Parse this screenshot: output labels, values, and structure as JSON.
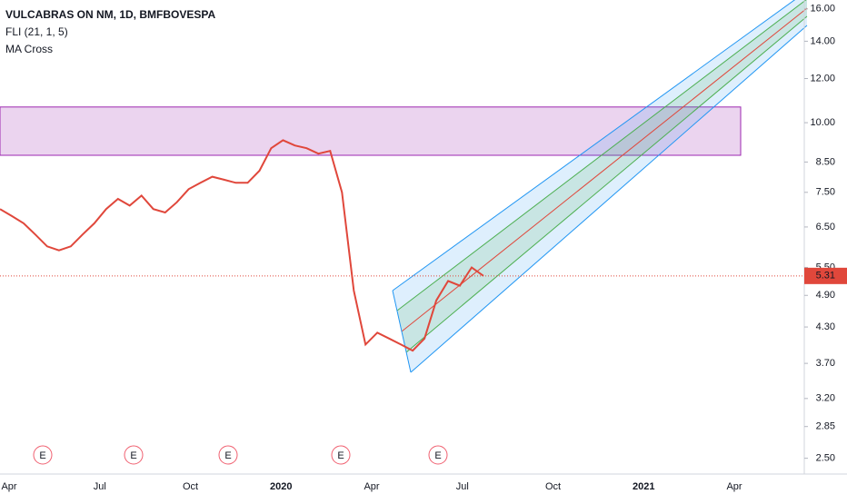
{
  "chart_data": {
    "type": "line",
    "log_scale": true,
    "title": "VULCABRAS ON NM, 1D, BMFBOVESPA",
    "indicators": [
      "FLI (21, 1, 5)",
      "MA Cross"
    ],
    "x_labels": [
      "Apr",
      "Jul",
      "Oct",
      "2020",
      "Apr",
      "Jul",
      "Oct",
      "2021",
      "Apr"
    ],
    "series": [
      {
        "color": "#e0473b",
        "values": [
          7.0,
          6.8,
          6.6,
          6.3,
          6.0,
          5.9,
          6.0,
          6.3,
          6.6,
          7.0,
          7.3,
          7.1,
          7.4,
          7.0,
          6.9,
          7.2,
          7.6,
          7.8,
          8.0,
          7.9,
          7.8,
          7.8,
          8.2,
          9.0,
          9.3,
          9.1,
          9.0,
          8.8,
          8.9,
          7.5,
          5.0,
          4.0,
          4.2,
          4.1,
          4.0,
          3.9,
          4.1,
          4.8,
          5.2,
          5.1,
          5.5,
          5.31
        ]
      }
    ],
    "last_price": 5.31,
    "last_price_color": "#e0473b",
    "zone": [
      8.74,
      10.67
    ],
    "zone_color": "#9c27b0",
    "events": [
      "E",
      "E",
      "E",
      "E",
      "E"
    ],
    "ylim": [
      2.36,
      16.6
    ],
    "yticks": [
      {
        "value": 16,
        "label": "16.00"
      },
      {
        "value": 14,
        "label": "14.00"
      },
      {
        "value": 12,
        "label": "12.00"
      },
      {
        "value": 10,
        "label": "10.00"
      },
      {
        "value": 8.5,
        "label": "8.50"
      },
      {
        "value": 7.5,
        "label": "7.50"
      },
      {
        "value": 6.5,
        "label": "6.50"
      },
      {
        "value": 5.5,
        "label": "5.50"
      },
      {
        "value": 4.9,
        "label": "4.90"
      },
      {
        "value": 4.3,
        "label": "4.30"
      },
      {
        "value": 3.7,
        "label": "3.70"
      },
      {
        "value": 3.2,
        "label": "3.20"
      },
      {
        "value": 2.85,
        "label": "2.85"
      },
      {
        "value": 2.5,
        "label": "2.50"
      }
    ]
  }
}
